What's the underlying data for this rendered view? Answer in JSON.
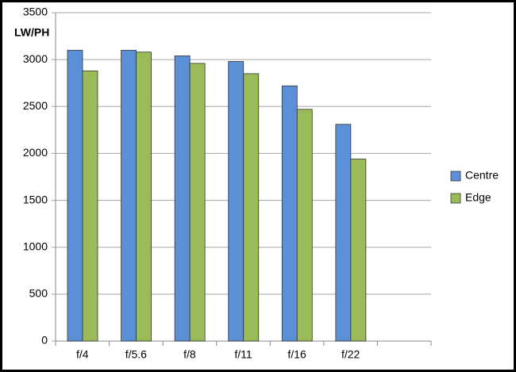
{
  "chart_data": {
    "type": "bar",
    "y_label": "LW/PH",
    "categories": [
      "f/4",
      "f/5.6",
      "f/8",
      "f/11",
      "f/16",
      "f/22",
      null
    ],
    "series": [
      {
        "name": "Centre",
        "color": "#5b8fd6",
        "values": [
          3100,
          3100,
          3040,
          2980,
          2720,
          2310,
          null
        ]
      },
      {
        "name": "Edge",
        "color": "#9bbb59",
        "values": [
          2880,
          3080,
          2960,
          2850,
          2470,
          1940,
          null
        ]
      }
    ],
    "ylim": [
      0,
      3500
    ],
    "yticks": [
      0,
      500,
      1000,
      1500,
      2000,
      2500,
      3000,
      3500
    ],
    "grid": true,
    "legend": "right"
  }
}
